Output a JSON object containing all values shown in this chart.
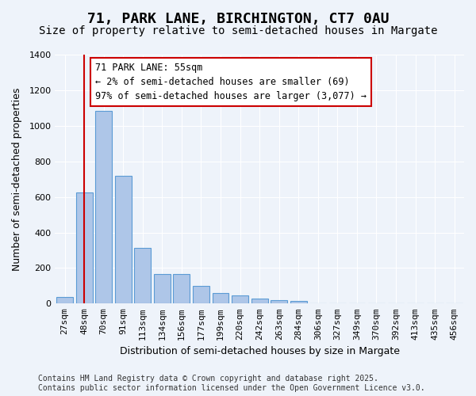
{
  "title": "71, PARK LANE, BIRCHINGTON, CT7 0AU",
  "subtitle": "Size of property relative to semi-detached houses in Margate",
  "xlabel": "Distribution of semi-detached houses by size in Margate",
  "ylabel": "Number of semi-detached properties",
  "categories": [
    "27sqm",
    "48sqm",
    "70sqm",
    "91sqm",
    "113sqm",
    "134sqm",
    "156sqm",
    "177sqm",
    "199sqm",
    "220sqm",
    "242sqm",
    "263sqm",
    "284sqm",
    "306sqm",
    "327sqm",
    "349sqm",
    "370sqm",
    "392sqm",
    "413sqm",
    "435sqm",
    "456sqm"
  ],
  "values": [
    38,
    625,
    1085,
    720,
    315,
    165,
    165,
    100,
    60,
    45,
    30,
    18,
    15,
    0,
    0,
    0,
    0,
    0,
    0,
    0,
    0
  ],
  "bar_color": "#aec6e8",
  "bar_edge_color": "#5b9bd5",
  "vline_x": 1.0,
  "vline_color": "#cc0000",
  "annotation_text": "71 PARK LANE: 55sqm\n← 2% of semi-detached houses are smaller (69)\n97% of semi-detached houses are larger (3,077) →",
  "annotation_box_color": "#ffffff",
  "annotation_box_edge_color": "#cc0000",
  "ylim": [
    0,
    1400
  ],
  "yticks": [
    0,
    200,
    400,
    600,
    800,
    1000,
    1200,
    1400
  ],
  "background_color": "#eef3fa",
  "grid_color": "#ffffff",
  "footer_text": "Contains HM Land Registry data © Crown copyright and database right 2025.\nContains public sector information licensed under the Open Government Licence v3.0.",
  "title_fontsize": 13,
  "subtitle_fontsize": 10,
  "xlabel_fontsize": 9,
  "ylabel_fontsize": 9,
  "tick_fontsize": 8,
  "annotation_fontsize": 8.5,
  "footer_fontsize": 7
}
